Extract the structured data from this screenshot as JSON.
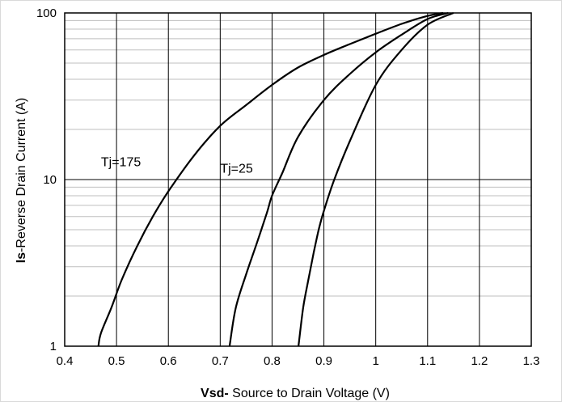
{
  "chart_data": {
    "type": "line",
    "title": "",
    "xlabel_bold": "Vsd-",
    "xlabel_rest": " Source to Drain Voltage (V)",
    "ylabel_bold": "Is",
    "ylabel_rest": "-Reverse Drain Current (A)",
    "xlim": [
      0.4,
      1.3
    ],
    "ylim": [
      1,
      100
    ],
    "y_scale": "log",
    "grid": true,
    "legend": "none",
    "x_ticks": [
      "0.4",
      "0.5",
      "0.6",
      "0.7",
      "0.8",
      "0.9",
      "1",
      "1.1",
      "1.2",
      "1.3"
    ],
    "y_ticks": [
      "1",
      "10",
      "100"
    ],
    "series": [
      {
        "label": "Tj=175",
        "x": [
          0.465,
          0.47,
          0.49,
          0.51,
          0.54,
          0.57,
          0.6,
          0.65,
          0.7,
          0.75,
          0.8,
          0.85,
          0.9,
          0.95,
          1.0,
          1.05,
          1.1,
          1.13
        ],
        "y": [
          1.0,
          1.2,
          1.7,
          2.5,
          4.0,
          6.0,
          8.5,
          14,
          21,
          28,
          37,
          47,
          56,
          65,
          75,
          86,
          96,
          100
        ]
      },
      {
        "label": "Tj=25",
        "x": [
          0.718,
          0.73,
          0.75,
          0.77,
          0.79,
          0.8,
          0.82,
          0.85,
          0.9,
          0.95,
          1.0,
          1.05,
          1.1,
          1.14
        ],
        "y": [
          1.0,
          1.7,
          2.7,
          4.1,
          6.3,
          8.0,
          11,
          18,
          30,
          43,
          58,
          74,
          92,
          100
        ]
      },
      {
        "label": "",
        "x": [
          0.851,
          0.86,
          0.87,
          0.88,
          0.89,
          0.9,
          0.92,
          0.95,
          1.0,
          1.05,
          1.1,
          1.15
        ],
        "y": [
          1.0,
          1.7,
          2.5,
          3.6,
          5.0,
          6.5,
          10,
          17,
          37,
          60,
          85,
          100
        ]
      }
    ],
    "annotations": [
      {
        "text": "Tj=175",
        "x": 0.47,
        "y": 12
      },
      {
        "text": "Tj=25",
        "x": 0.7,
        "y": 11
      }
    ]
  }
}
